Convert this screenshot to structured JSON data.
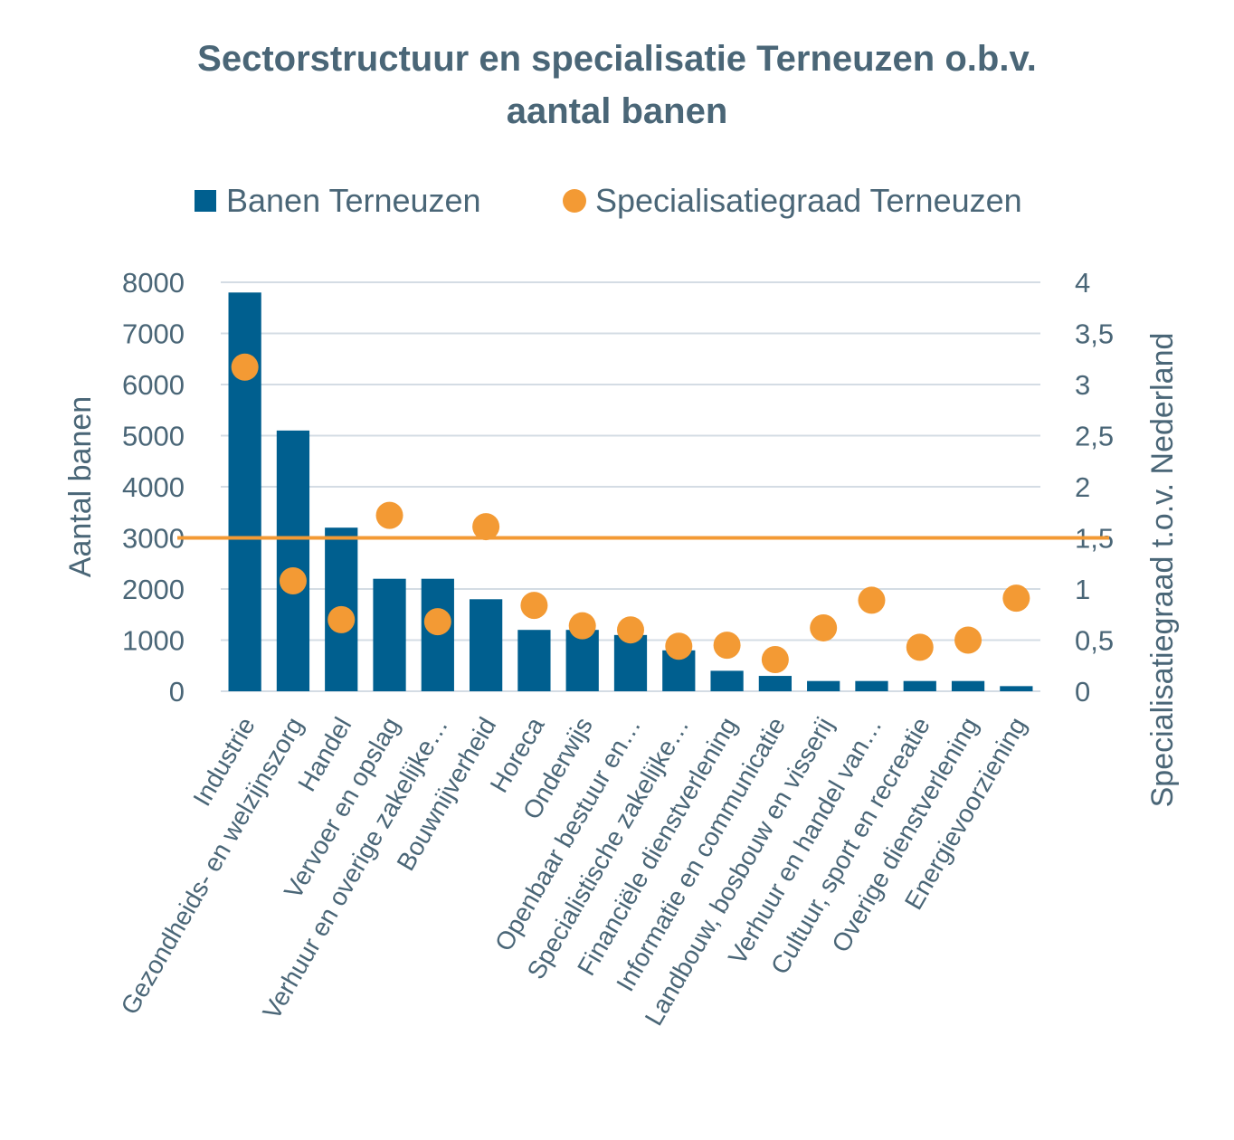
{
  "chart_data": {
    "type": "bar",
    "title_lines": [
      "Sectorstructuur en specialisatie Terneuzen o.b.v.",
      "aantal banen"
    ],
    "categories": [
      "Industrie",
      "Gezondheids- en welzijnszorg",
      "Handel",
      "Vervoer en opslag",
      "Verhuur en overige zakelijke…",
      "Bouwnijverheid",
      "Horeca",
      "Onderwijs",
      "Openbaar bestuur en…",
      "Specialistische zakelijke…",
      "Financiële dienstverlening",
      "Informatie en communicatie",
      "Landbouw, bosbouw en visserij",
      "Verhuur en handel van…",
      "Cultuur, sport en recreatie",
      "Overige dienstverlening",
      "Energievoorziening"
    ],
    "series": [
      {
        "name": "Banen Terneuzen",
        "type": "bar",
        "axis": "left",
        "color": "#005f8f",
        "values": [
          7800,
          5100,
          3200,
          2200,
          2200,
          1800,
          1200,
          1200,
          1100,
          800,
          400,
          300,
          200,
          200,
          200,
          200,
          100
        ]
      },
      {
        "name": "Specialisatiegraad Terneuzen",
        "type": "scatter",
        "axis": "right",
        "color": "#f39a34",
        "values": [
          3.17,
          1.08,
          0.7,
          1.72,
          0.68,
          1.61,
          0.84,
          0.64,
          0.6,
          0.44,
          0.45,
          0.31,
          0.62,
          0.89,
          0.43,
          0.5,
          0.91
        ]
      }
    ],
    "reference_line": {
      "axis": "right",
      "value": 1.5,
      "color": "#f39a34"
    },
    "y_left": {
      "label": "Aantal banen",
      "min": 0,
      "max": 8000,
      "ticks": [
        0,
        1000,
        2000,
        3000,
        4000,
        5000,
        6000,
        7000,
        8000
      ],
      "tick_labels": [
        "0",
        "1000",
        "2000",
        "3000",
        "4000",
        "5000",
        "6000",
        "7000",
        "8000"
      ]
    },
    "y_right": {
      "label": "Specialisatiegraad t.o.v. Nederland",
      "min": 0,
      "max": 4,
      "ticks": [
        0,
        0.5,
        1,
        1.5,
        2,
        2.5,
        3,
        3.5,
        4
      ],
      "tick_labels": [
        "0",
        "0,5",
        "1",
        "1,5",
        "2",
        "2,5",
        "3",
        "3,5",
        "4"
      ]
    },
    "legend": [
      "Banen Terneuzen",
      "Specialisatiegraad Terneuzen"
    ],
    "legend_position": "top",
    "grid": true
  }
}
